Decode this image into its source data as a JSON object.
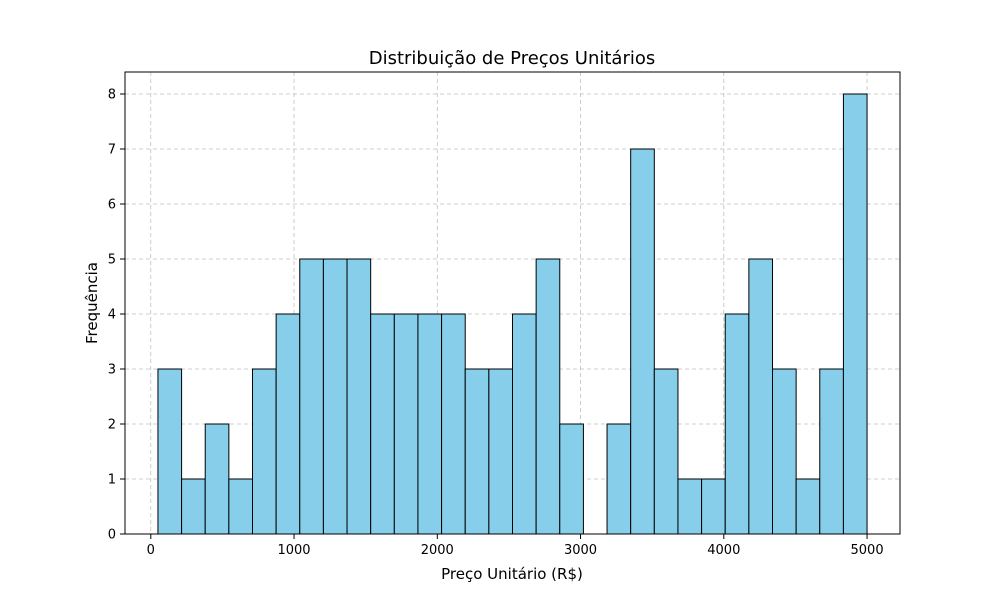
{
  "chart_data": {
    "type": "bar",
    "title": "Distribuição de Preços Unitários",
    "xlabel": "Preço Unitário (R$)",
    "ylabel": "Frequência",
    "bin_start": 50,
    "bin_width": 165,
    "values": [
      3,
      1,
      2,
      1,
      3,
      4,
      5,
      5,
      5,
      4,
      4,
      4,
      4,
      3,
      3,
      4,
      5,
      2,
      0,
      2,
      7,
      3,
      1,
      1,
      4,
      5,
      3,
      1,
      3,
      8
    ],
    "xlim": [
      -180,
      5230
    ],
    "ylim": [
      0,
      8.4
    ],
    "x_ticks": [
      0,
      1000,
      2000,
      3000,
      4000,
      5000
    ],
    "y_ticks": [
      0,
      1,
      2,
      3,
      4,
      5,
      6,
      7,
      8
    ],
    "grid": true,
    "bar_color": "#87ceeb",
    "edge_color": "#000000"
  }
}
